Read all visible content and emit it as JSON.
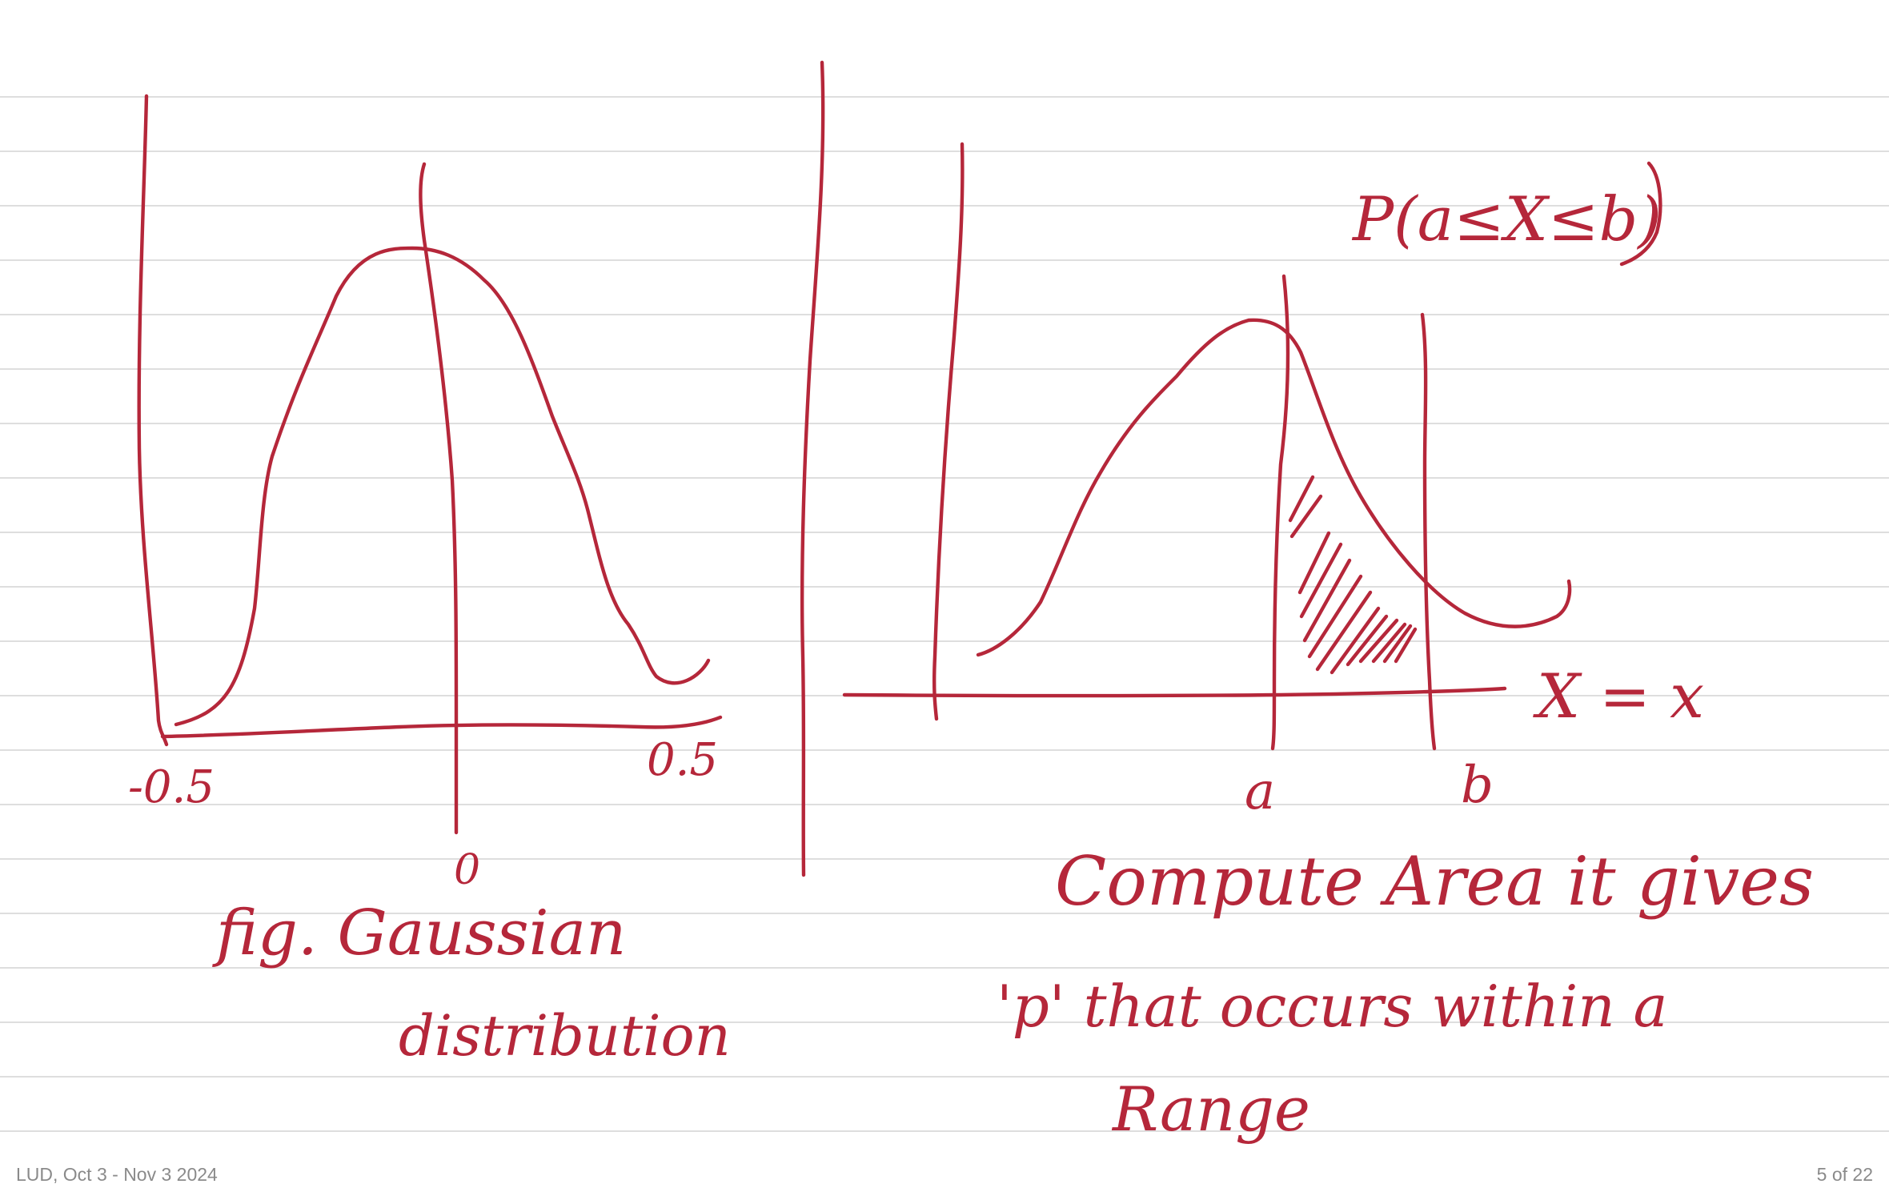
{
  "note": {
    "ink_color": "#b5273a",
    "line_color": "#dedede",
    "background": "#ffffff"
  },
  "left_figure": {
    "neg_label": "-0.5",
    "pos_label": "0.5",
    "zero_label": "0",
    "caption_line1": "fig. Gaussian",
    "caption_line2": "distribution"
  },
  "right_figure": {
    "prob_label": "P(a≤X≤b)",
    "axis_label": "X = x",
    "a_label": "a",
    "b_label": "b",
    "text_line1": "Compute  Area  it gives",
    "text_line2": "'p'  that occurs  within a",
    "text_line3": "Range"
  },
  "footer": {
    "title": "LUD, Oct 3 - Nov 3 2024",
    "page": "5 of 22"
  }
}
